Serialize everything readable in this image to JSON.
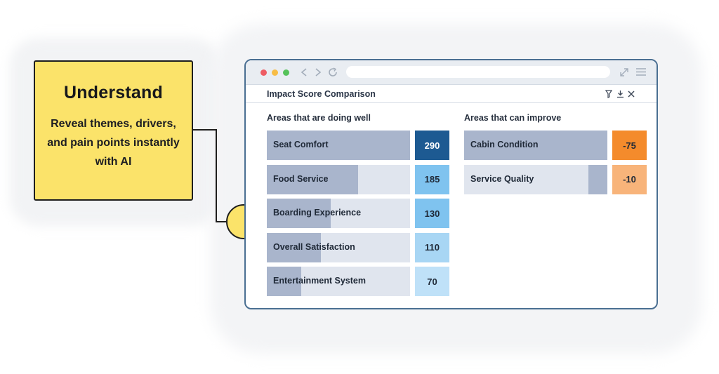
{
  "callout": {
    "title": "Understand",
    "text_lines": [
      "Reveal themes, drivers,",
      "and pain points instantly",
      "with AI"
    ]
  },
  "browser": {
    "icons": [
      "close-dot",
      "minimize-dot",
      "maximize-dot",
      "back-icon",
      "forward-icon",
      "reload-icon",
      "expand-icon",
      "menu-icon"
    ]
  },
  "panel": {
    "title": "Impact Score Comparison",
    "tools": [
      "filter-icon",
      "download-icon",
      "close-icon"
    ]
  },
  "doing_well": {
    "heading": "Areas that are doing well",
    "max": 290,
    "items": [
      {
        "label": "Seat Comfort",
        "value": 290,
        "color": "#1d5a92",
        "text_color": "#ffffff"
      },
      {
        "label": "Food Service",
        "value": 185,
        "color": "#7fc3ef",
        "text_color": "#1f2937"
      },
      {
        "label": "Boarding Experience",
        "value": 130,
        "color": "#7fc3ef",
        "text_color": "#1f2937"
      },
      {
        "label": "Overall Satisfaction",
        "value": 110,
        "color": "#a8d6f4",
        "text_color": "#1f2937"
      },
      {
        "label": "Entertainment System",
        "value": 70,
        "color": "#bfe1f8",
        "text_color": "#1f2937"
      }
    ]
  },
  "can_improve": {
    "heading": "Areas that can improve",
    "max": 75,
    "items": [
      {
        "label": "Cabin Condition",
        "value": -75,
        "color": "#f48b2c",
        "text_color": "#1f2937"
      },
      {
        "label": "Service Quality",
        "value": -10,
        "color": "#f8b47a",
        "text_color": "#1f2937"
      }
    ]
  }
}
